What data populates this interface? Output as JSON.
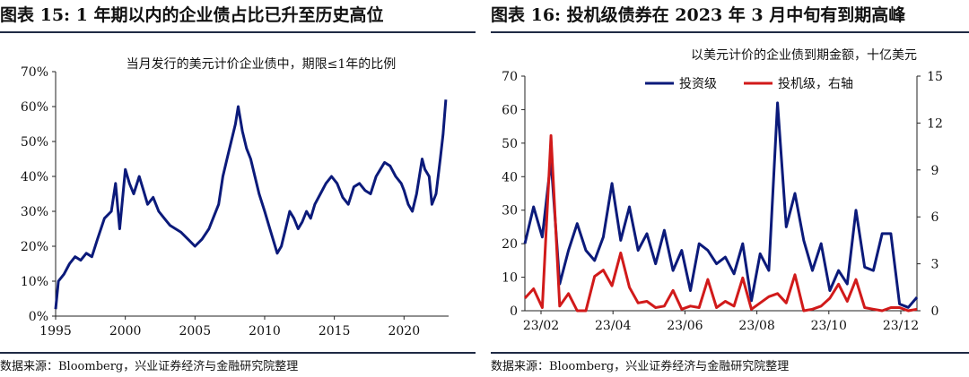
{
  "colors": {
    "navy": "#0b1a7a",
    "red": "#d11a1a",
    "rule": "#1f2a44"
  },
  "left": {
    "title": "图表 15:  1 年期以内的企业债占比已升至历史高位",
    "source": "数据来源：Bloomberg，兴业证券经济与金融研究院整理"
  },
  "right": {
    "title": "图表 16:  投机级债券在 2023 年 3 月中旬有到期高峰",
    "source": "数据来源：Bloomberg，兴业证券经济与金融研究院整理"
  },
  "chart_data": [
    {
      "type": "line",
      "title": "当月发行的美元计价企业债中，期限≤1年的比例",
      "xlabel": "",
      "ylabel": "",
      "xlim": [
        1995,
        2023.2
      ],
      "ylim": [
        0,
        70
      ],
      "xticks": [
        1995,
        2000,
        2005,
        2010,
        2015,
        2020
      ],
      "yticks": [
        0,
        10,
        20,
        30,
        40,
        50,
        60,
        70
      ],
      "y_format": "percent",
      "grid": false,
      "series": [
        {
          "name": "",
          "color": "#0b1a7a",
          "x": [
            1995,
            1995.2,
            1995.6,
            1996,
            1996.4,
            1996.8,
            1997.2,
            1997.6,
            1998,
            1998.5,
            1999,
            1999.3,
            1999.6,
            2000,
            2000.3,
            2000.6,
            2001,
            2001.3,
            2001.6,
            2002,
            2002.4,
            2002.8,
            2003.2,
            2003.6,
            2004,
            2004.5,
            2005,
            2005.5,
            2006,
            2006.3,
            2006.7,
            2007,
            2007.3,
            2007.6,
            2007.9,
            2008.1,
            2008.4,
            2008.7,
            2009,
            2009.3,
            2009.6,
            2010,
            2010.3,
            2010.6,
            2010.9,
            2011.2,
            2011.5,
            2011.8,
            2012.1,
            2012.4,
            2012.7,
            2013,
            2013.3,
            2013.6,
            2014,
            2014.4,
            2014.8,
            2015.2,
            2015.6,
            2016,
            2016.4,
            2016.8,
            2017.2,
            2017.6,
            2018,
            2018.3,
            2018.6,
            2019,
            2019.4,
            2019.8,
            2020,
            2020.3,
            2020.6,
            2020.9,
            2021.1,
            2021.3,
            2021.5,
            2021.8,
            2022,
            2022.3,
            2022.6,
            2022.8,
            2023
          ],
          "y": [
            2,
            10,
            12,
            15,
            17,
            16,
            18,
            17,
            22,
            28,
            30,
            38,
            25,
            42,
            38,
            35,
            40,
            36,
            32,
            34,
            30,
            28,
            26,
            25,
            24,
            22,
            20,
            22,
            25,
            28,
            32,
            40,
            45,
            50,
            55,
            60,
            53,
            48,
            45,
            40,
            35,
            30,
            26,
            22,
            18,
            20,
            25,
            30,
            28,
            25,
            27,
            30,
            28,
            32,
            35,
            38,
            40,
            38,
            34,
            32,
            37,
            38,
            36,
            35,
            40,
            42,
            44,
            43,
            40,
            38,
            36,
            32,
            30,
            35,
            40,
            45,
            42,
            40,
            32,
            35,
            45,
            52,
            62
          ]
        }
      ]
    },
    {
      "type": "line",
      "title": "以美元计价的企业债到期金额，十亿美元",
      "xlabel": "",
      "ylabel": "",
      "xticks": [
        "23/02",
        "23/04",
        "23/06",
        "23/08",
        "23/10",
        "23/12"
      ],
      "ylim": [
        0,
        70
      ],
      "y2lim": [
        0,
        15
      ],
      "yticks": [
        0,
        10,
        20,
        30,
        40,
        50,
        60,
        70
      ],
      "y2ticks": [
        0,
        3,
        6,
        9,
        12,
        15
      ],
      "legend": "top-right",
      "grid": false,
      "series": [
        {
          "name": "投资级",
          "axis": "left",
          "color": "#0b1a7a",
          "y": [
            20,
            31,
            22,
            45,
            8,
            18,
            26,
            18,
            15,
            22,
            38,
            21,
            31,
            18,
            23,
            14,
            24,
            12,
            18,
            6,
            20,
            18,
            14,
            16,
            11,
            20,
            3,
            17,
            12,
            62,
            25,
            35,
            21,
            12,
            20,
            6,
            12,
            8,
            30,
            13,
            12,
            23,
            23,
            2,
            1,
            4
          ]
        },
        {
          "name": "投机级，右轴",
          "axis": "right",
          "color": "#d11a1a",
          "y": [
            0.8,
            1.4,
            0.2,
            11.2,
            0.3,
            1.1,
            0,
            0,
            2.2,
            2.6,
            1.6,
            3.7,
            1.5,
            0.5,
            0.6,
            0.2,
            0.3,
            1.3,
            0.1,
            0.3,
            0.2,
            2.0,
            0.2,
            0.6,
            0.3,
            2.1,
            0.1,
            0.5,
            0.9,
            1.1,
            0.5,
            2.3,
            0,
            0.1,
            0.3,
            0.8,
            1.7,
            0.6,
            2.0,
            0.2,
            0.1,
            0,
            0.2,
            0.2,
            0,
            0.1
          ]
        }
      ]
    }
  ]
}
